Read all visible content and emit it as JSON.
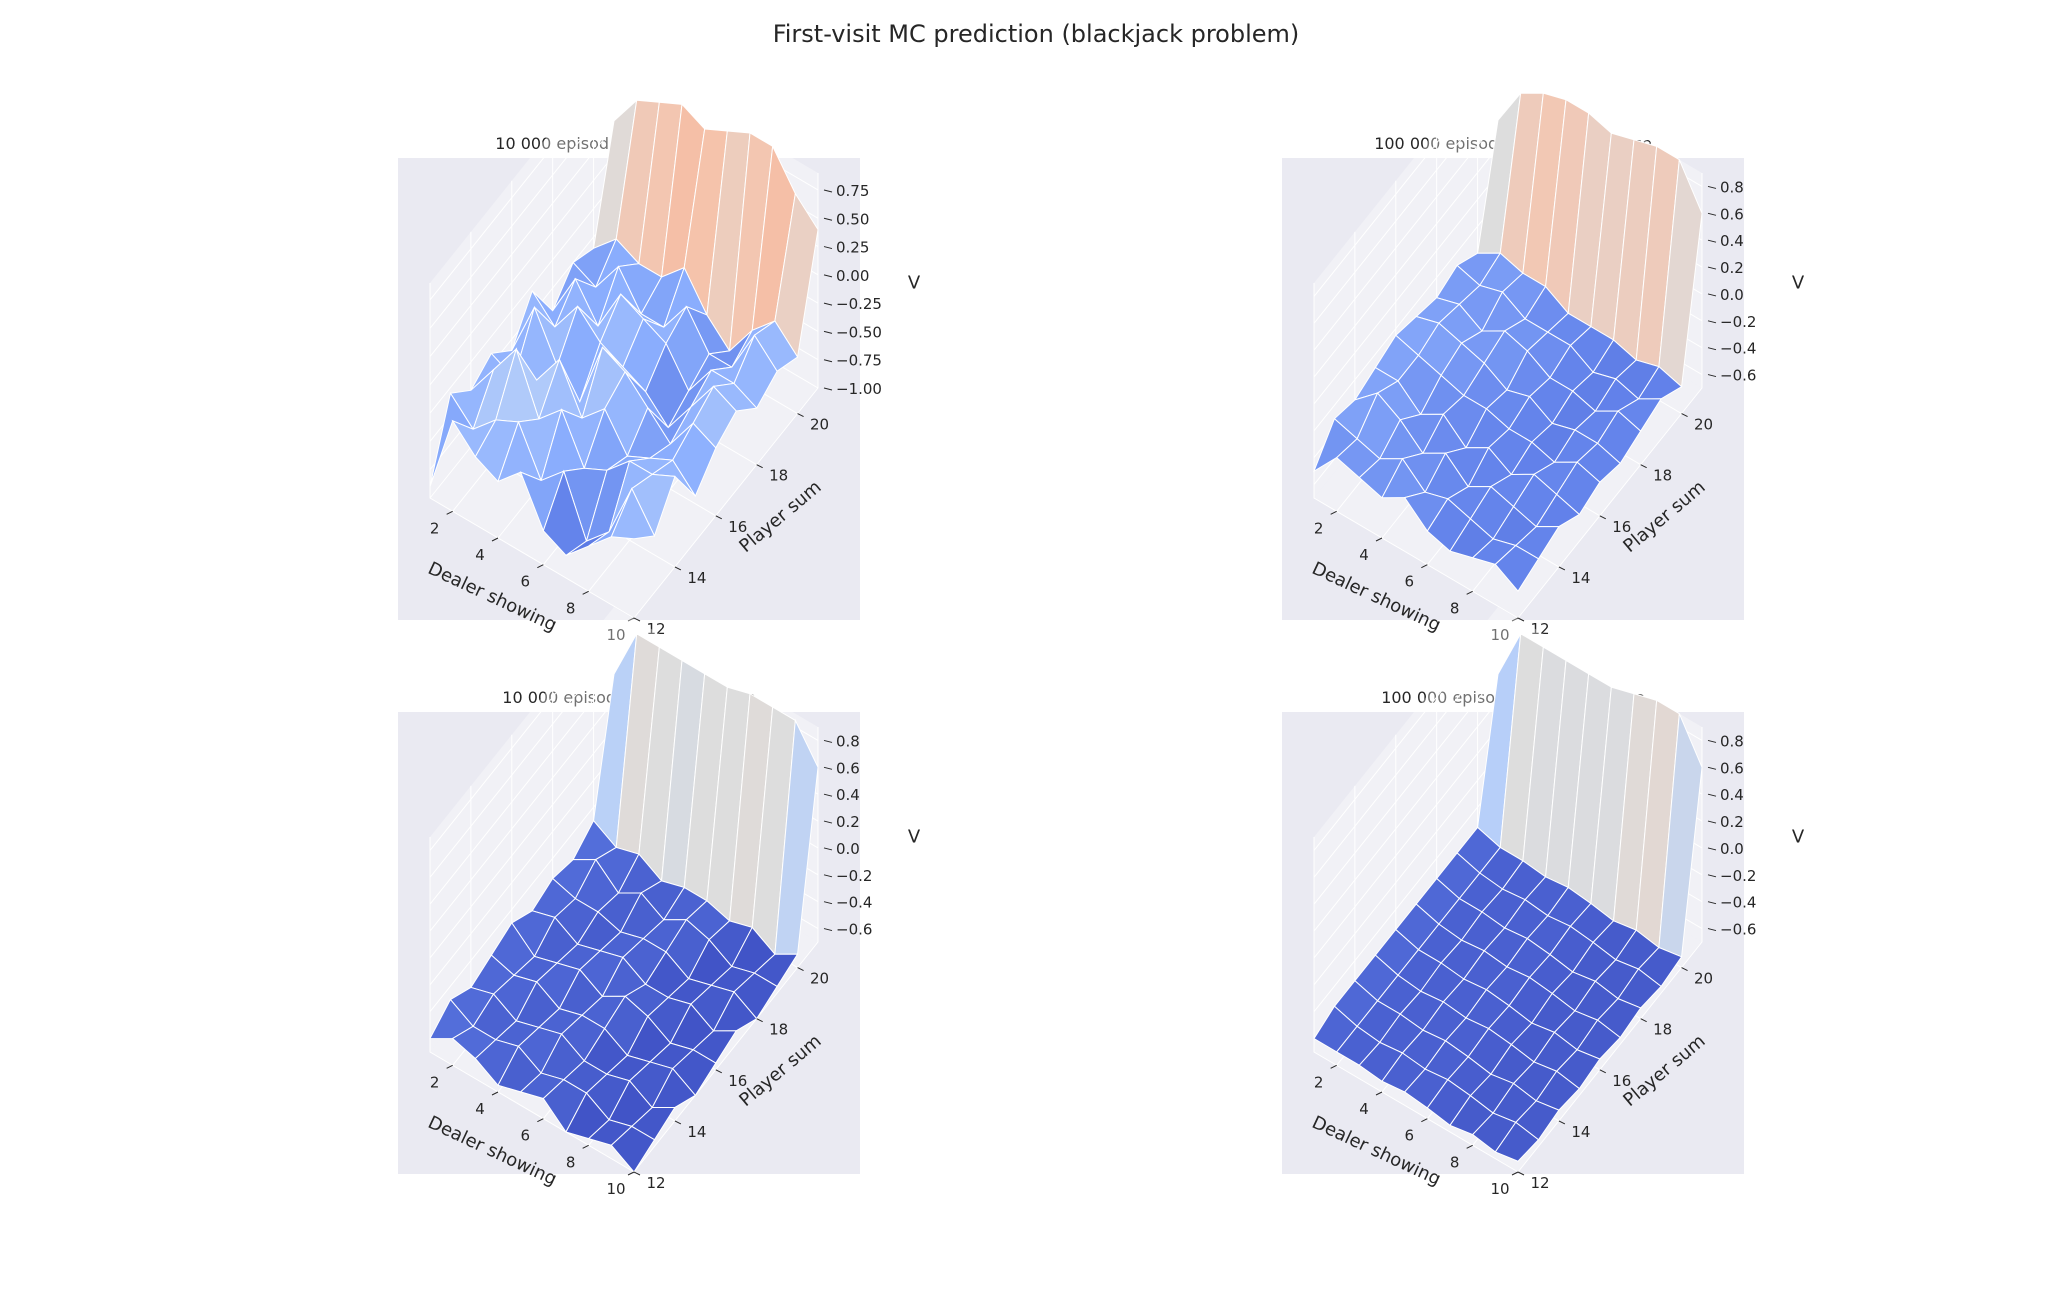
{
  "figure": {
    "title": "First-visit MC prediction (blackjack problem)"
  },
  "chart_data": [
    {
      "type": "surface3d",
      "title": "10 000 episodes, with usable ace",
      "xlabel": "Dealer showing",
      "ylabel": "Player sum",
      "zlabel": "V",
      "x": [
        1,
        2,
        3,
        4,
        5,
        6,
        7,
        8,
        9,
        10
      ],
      "y": [
        12,
        13,
        14,
        15,
        16,
        17,
        18,
        19,
        20,
        21
      ],
      "xticks": [
        "2",
        "4",
        "6",
        "8",
        "10"
      ],
      "yticks": [
        "12",
        "14",
        "16",
        "18",
        "20"
      ],
      "zlim": [
        -1.0,
        0.9
      ],
      "zticks": [
        "0.75",
        "0.50",
        "0.25",
        "0.00",
        "−0.25",
        "−0.50",
        "−0.75",
        "−1.00"
      ],
      "zticks_values": [
        0.75,
        0.5,
        0.25,
        0.0,
        -0.25,
        -0.5,
        -0.75,
        -1.0
      ],
      "colormap": "coolwarm",
      "z": [
        [
          -0.9,
          -0.3,
          -0.5,
          -0.4,
          -0.6,
          -0.3,
          -0.7,
          -0.5,
          -0.6,
          0.3
        ],
        [
          -0.2,
          -0.5,
          -0.2,
          -0.5,
          -0.1,
          -0.5,
          -0.3,
          -0.6,
          -0.4,
          0.6
        ],
        [
          -0.4,
          -0.3,
          0.1,
          -0.4,
          -0.5,
          -0.2,
          -0.6,
          -0.3,
          -0.5,
          0.7
        ],
        [
          -0.5,
          -0.2,
          -0.4,
          -0.1,
          -0.7,
          -0.4,
          -0.2,
          -0.6,
          -0.5,
          0.8
        ],
        [
          -0.3,
          -0.6,
          -0.2,
          -0.5,
          -0.1,
          -0.5,
          -0.3,
          -0.6,
          -0.3,
          0.7
        ],
        [
          -0.7,
          -0.4,
          -0.6,
          -0.3,
          -0.2,
          -0.6,
          -0.4,
          -0.3,
          -0.6,
          0.8
        ],
        [
          -0.8,
          -0.9,
          -0.5,
          -0.6,
          -0.4,
          -0.8,
          -0.7,
          -0.6,
          -0.8,
          0.9
        ],
        [
          -0.6,
          -0.7,
          -0.3,
          -0.5,
          -0.6,
          -0.5,
          -0.4,
          -0.6,
          -0.5,
          0.9
        ],
        [
          -0.4,
          -0.2,
          -0.3,
          -0.4,
          -0.3,
          -0.2,
          -0.4,
          -0.2,
          -0.3,
          0.6
        ],
        [
          -0.3,
          -0.5,
          -0.2,
          -0.6,
          -0.4,
          -0.3,
          -0.5,
          -0.4,
          -0.5,
          0.4
        ]
      ]
    },
    {
      "type": "surface3d",
      "title": "100 000 episodes, with usable ace",
      "xlabel": "Dealer showing",
      "ylabel": "Player sum",
      "zlabel": "V",
      "x": [
        1,
        2,
        3,
        4,
        5,
        6,
        7,
        8,
        9,
        10
      ],
      "y": [
        12,
        13,
        14,
        15,
        16,
        17,
        18,
        19,
        20,
        21
      ],
      "xticks": [
        "2",
        "4",
        "6",
        "8",
        "10"
      ],
      "yticks": [
        "12",
        "14",
        "16",
        "18",
        "20"
      ],
      "zlim": [
        -0.7,
        0.9
      ],
      "zticks": [
        "0.8",
        "0.6",
        "0.4",
        "0.2",
        "0.0",
        "−0.2",
        "−0.4",
        "−0.6"
      ],
      "zticks_values": [
        0.8,
        0.6,
        0.4,
        0.2,
        0.0,
        -0.2,
        -0.4,
        -0.6
      ],
      "colormap": "coolwarm",
      "z": [
        [
          -0.5,
          -0.3,
          -0.35,
          -0.3,
          -0.25,
          -0.3,
          -0.35,
          -0.3,
          -0.4,
          0.4
        ],
        [
          -0.3,
          -0.35,
          -0.2,
          -0.3,
          -0.3,
          -0.25,
          -0.3,
          -0.35,
          -0.3,
          0.7
        ],
        [
          -0.35,
          -0.4,
          -0.3,
          -0.45,
          -0.35,
          -0.3,
          -0.4,
          -0.3,
          -0.35,
          0.8
        ],
        [
          -0.4,
          -0.3,
          -0.45,
          -0.35,
          -0.4,
          -0.35,
          -0.3,
          -0.4,
          -0.35,
          0.85
        ],
        [
          -0.3,
          -0.45,
          -0.35,
          -0.5,
          -0.4,
          -0.45,
          -0.35,
          -0.4,
          -0.45,
          0.85
        ],
        [
          -0.45,
          -0.4,
          -0.5,
          -0.4,
          -0.45,
          -0.4,
          -0.45,
          -0.4,
          -0.45,
          0.8
        ],
        [
          -0.5,
          -0.45,
          -0.4,
          -0.5,
          -0.45,
          -0.5,
          -0.45,
          -0.5,
          -0.45,
          0.85
        ],
        [
          -0.45,
          -0.5,
          -0.45,
          -0.4,
          -0.5,
          -0.45,
          -0.5,
          -0.45,
          -0.5,
          0.9
        ],
        [
          -0.4,
          -0.45,
          -0.5,
          -0.45,
          -0.4,
          -0.45,
          -0.4,
          -0.5,
          -0.45,
          0.9
        ],
        [
          -0.5,
          -0.45,
          -0.4,
          -0.5,
          -0.45,
          -0.5,
          -0.45,
          -0.4,
          -0.5,
          0.6
        ]
      ]
    },
    {
      "type": "surface3d",
      "title": "10 000 episodes, no usable ace",
      "xlabel": "Dealer showing",
      "ylabel": "Player sum",
      "zlabel": "V",
      "x": [
        1,
        2,
        3,
        4,
        5,
        6,
        7,
        8,
        9,
        10
      ],
      "y": [
        12,
        13,
        14,
        15,
        16,
        17,
        18,
        19,
        20,
        21
      ],
      "xticks": [
        "2",
        "4",
        "6",
        "8",
        "10"
      ],
      "yticks": [
        "12",
        "14",
        "16",
        "18",
        "20"
      ],
      "zlim": [
        -0.7,
        0.9
      ],
      "zticks": [
        "0.8",
        "0.6",
        "0.4",
        "0.2",
        "0.0",
        "−0.2",
        "−0.4",
        "−0.6"
      ],
      "zticks_values": [
        0.8,
        0.6,
        0.4,
        0.2,
        0.0,
        -0.2,
        -0.4,
        -0.6
      ],
      "colormap": "coolwarm",
      "z": [
        [
          -0.6,
          -0.5,
          -0.6,
          -0.55,
          -0.5,
          -0.6,
          -0.55,
          -0.6,
          -0.5,
          0.4
        ],
        [
          -0.5,
          -0.6,
          -0.55,
          -0.6,
          -0.65,
          -0.55,
          -0.6,
          -0.5,
          -0.6,
          0.8
        ],
        [
          -0.55,
          -0.6,
          -0.65,
          -0.55,
          -0.6,
          -0.65,
          -0.6,
          -0.65,
          -0.55,
          0.8
        ],
        [
          -0.65,
          -0.55,
          -0.6,
          -0.65,
          -0.55,
          -0.6,
          -0.65,
          -0.55,
          -0.65,
          0.8
        ],
        [
          -0.6,
          -0.65,
          -0.55,
          -0.6,
          -0.65,
          -0.55,
          -0.6,
          -0.65,
          -0.6,
          0.8
        ],
        [
          -0.55,
          -0.6,
          -0.65,
          -0.6,
          -0.55,
          -0.65,
          -0.6,
          -0.55,
          -0.6,
          0.8
        ],
        [
          -0.7,
          -0.6,
          -0.65,
          -0.7,
          -0.6,
          -0.65,
          -0.7,
          -0.6,
          -0.65,
          0.85
        ],
        [
          -0.65,
          -0.7,
          -0.6,
          -0.65,
          -0.7,
          -0.6,
          -0.65,
          -0.7,
          -0.6,
          0.85
        ],
        [
          -0.6,
          -0.65,
          -0.7,
          -0.6,
          -0.65,
          -0.7,
          -0.6,
          -0.65,
          -0.7,
          0.85
        ],
        [
          -0.7,
          -0.65,
          -0.6,
          -0.7,
          -0.65,
          -0.6,
          -0.7,
          -0.65,
          -0.6,
          0.6
        ]
      ]
    },
    {
      "type": "surface3d",
      "title": "100 000 episodes, no usable ace",
      "xlabel": "Dealer showing",
      "ylabel": "Player sum",
      "zlabel": "V",
      "x": [
        1,
        2,
        3,
        4,
        5,
        6,
        7,
        8,
        9,
        10
      ],
      "y": [
        12,
        13,
        14,
        15,
        16,
        17,
        18,
        19,
        20,
        21
      ],
      "xticks": [
        "2",
        "4",
        "6",
        "8",
        "10"
      ],
      "yticks": [
        "12",
        "14",
        "16",
        "18",
        "20"
      ],
      "zlim": [
        -0.7,
        0.9
      ],
      "zticks": [
        "0.8",
        "0.6",
        "0.4",
        "0.2",
        "0.0",
        "−0.2",
        "−0.4",
        "−0.6"
      ],
      "zticks_values": [
        0.8,
        0.6,
        0.4,
        0.2,
        0.0,
        -0.2,
        -0.4,
        -0.6
      ],
      "colormap": "coolwarm",
      "z": [
        [
          -0.6,
          -0.55,
          -0.55,
          -0.55,
          -0.55,
          -0.55,
          -0.55,
          -0.55,
          -0.55,
          0.4
        ],
        [
          -0.6,
          -0.6,
          -0.6,
          -0.6,
          -0.6,
          -0.6,
          -0.6,
          -0.6,
          -0.6,
          0.8
        ],
        [
          -0.6,
          -0.62,
          -0.6,
          -0.62,
          -0.6,
          -0.62,
          -0.6,
          -0.62,
          -0.6,
          0.8
        ],
        [
          -0.62,
          -0.6,
          -0.62,
          -0.6,
          -0.62,
          -0.6,
          -0.62,
          -0.6,
          -0.62,
          0.8
        ],
        [
          -0.6,
          -0.62,
          -0.6,
          -0.62,
          -0.6,
          -0.62,
          -0.6,
          -0.62,
          -0.6,
          0.8
        ],
        [
          -0.62,
          -0.6,
          -0.62,
          -0.6,
          -0.62,
          -0.6,
          -0.62,
          -0.6,
          -0.62,
          0.8
        ],
        [
          -0.65,
          -0.62,
          -0.65,
          -0.62,
          -0.65,
          -0.62,
          -0.65,
          -0.62,
          -0.65,
          0.85
        ],
        [
          -0.62,
          -0.65,
          -0.62,
          -0.65,
          -0.62,
          -0.65,
          -0.62,
          -0.65,
          -0.62,
          0.9
        ],
        [
          -0.65,
          -0.62,
          -0.65,
          -0.62,
          -0.65,
          -0.62,
          -0.65,
          -0.62,
          -0.65,
          0.9
        ],
        [
          -0.62,
          -0.65,
          -0.62,
          -0.65,
          -0.62,
          -0.65,
          -0.62,
          -0.65,
          -0.62,
          0.6
        ]
      ]
    }
  ]
}
